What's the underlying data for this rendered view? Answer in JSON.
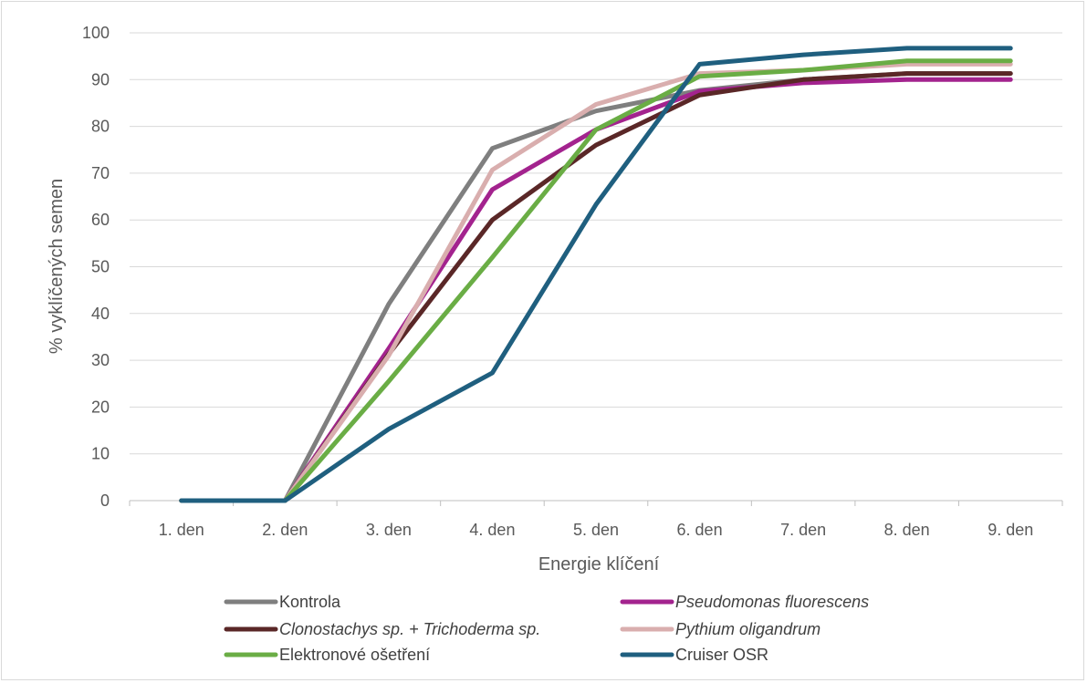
{
  "chart_data": {
    "type": "line",
    "title": "",
    "xlabel": "Energie klíčení",
    "ylabel": "% vyklíčených semen",
    "categories": [
      "1. den",
      "2. den",
      "3. den",
      "4. den",
      "5. den",
      "6. den",
      "7. den",
      "8. den",
      "9. den"
    ],
    "ylim": [
      0,
      100
    ],
    "yticks": [
      0,
      10,
      20,
      30,
      40,
      50,
      60,
      70,
      80,
      90,
      100
    ],
    "grid": "horizontal",
    "legend_position": "bottom",
    "series": [
      {
        "name": "Kontrola",
        "color": "#7f7f7f",
        "italic": false,
        "values": [
          0,
          0,
          42,
          75.3,
          83.3,
          87.7,
          90,
          91.3,
          91.3
        ]
      },
      {
        "name": "Pseudomonas fluorescens",
        "color": "#a3238e",
        "italic": true,
        "values": [
          0,
          0,
          32.5,
          66.5,
          79.3,
          87.5,
          89.3,
          90,
          90
        ]
      },
      {
        "name": "Clonostachys sp. + Trichoderma sp.",
        "color": "#5a2727",
        "italic": true,
        "values": [
          0,
          0,
          31.3,
          60,
          76,
          86.7,
          90,
          91.3,
          91.3
        ]
      },
      {
        "name": "Pythium oligandrum",
        "color": "#d9aeae",
        "italic": true,
        "values": [
          0,
          0,
          31,
          70.7,
          84.7,
          91.3,
          92,
          93.3,
          93.3
        ]
      },
      {
        "name": "Elektronové ošetření",
        "color": "#6aad45",
        "italic": false,
        "values": [
          0,
          0,
          25.5,
          52,
          79.3,
          90.7,
          92,
          94,
          94
        ]
      },
      {
        "name": "Cruiser OSR",
        "color": "#1f5f7f",
        "italic": false,
        "values": [
          0,
          0,
          15.3,
          27.3,
          63.3,
          93.3,
          95.3,
          96.7,
          96.7
        ]
      }
    ]
  }
}
